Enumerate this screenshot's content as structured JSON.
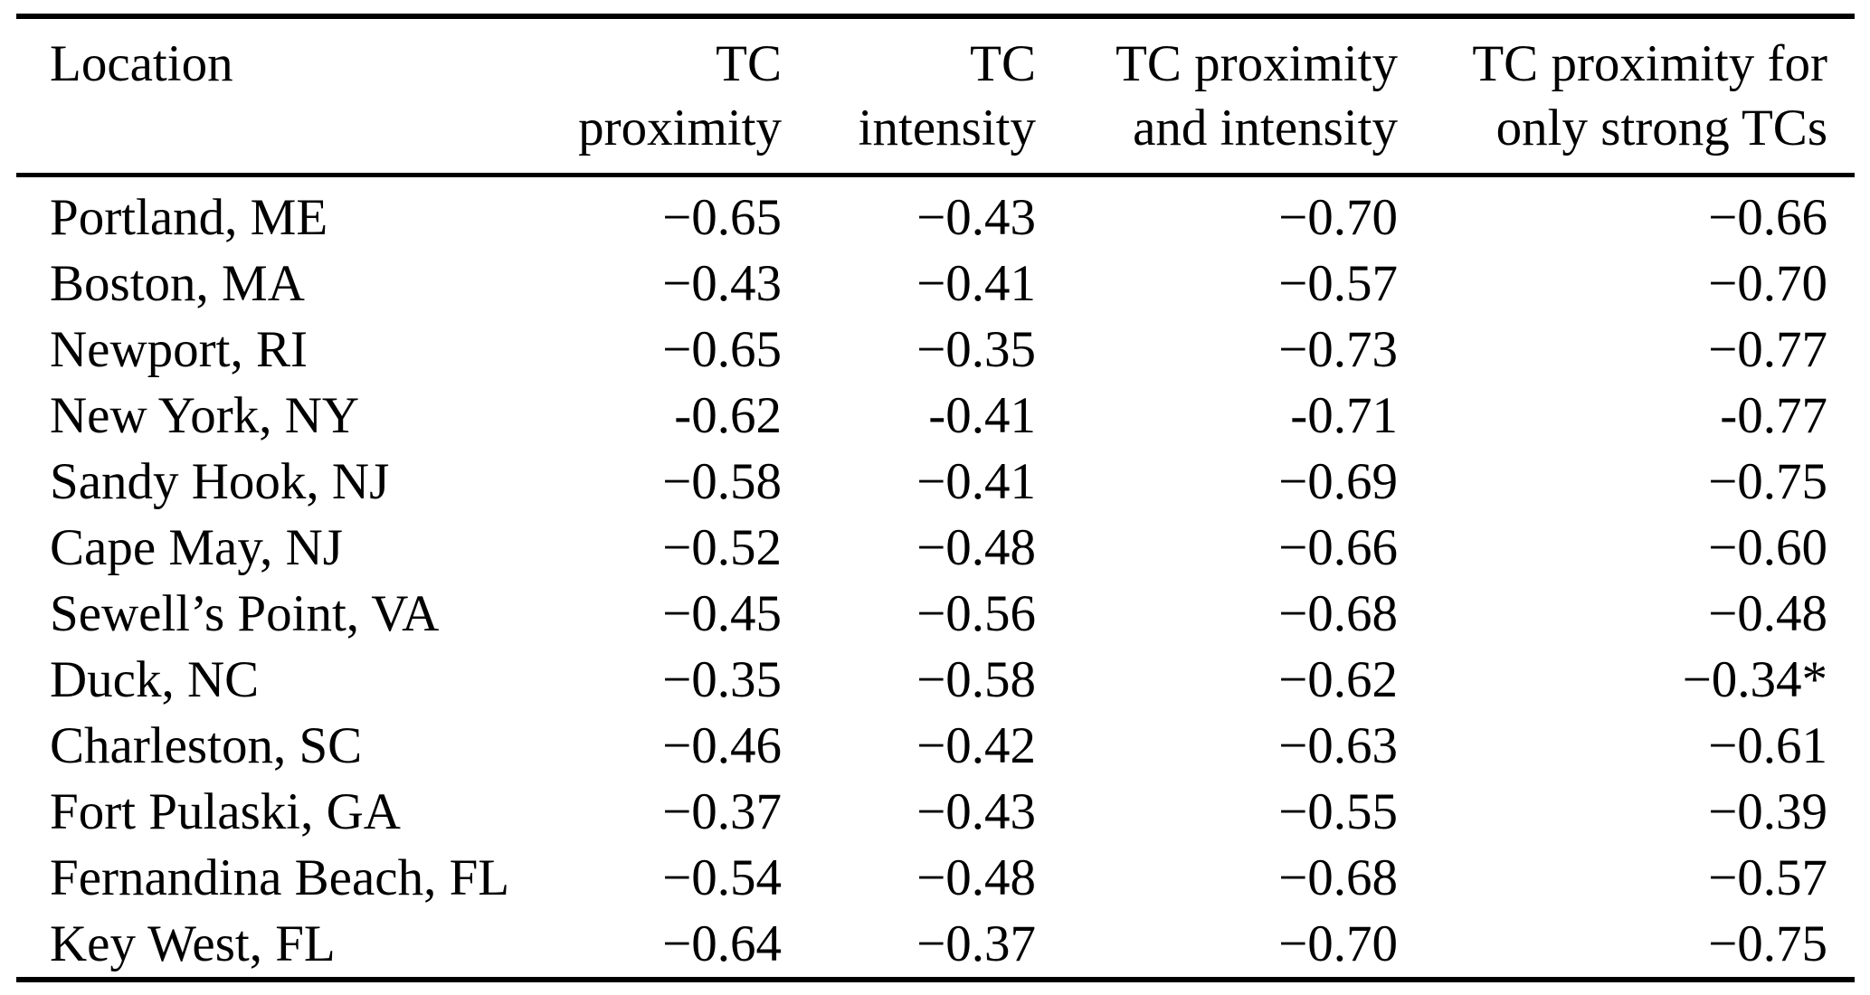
{
  "table": {
    "columns": [
      {
        "line1": "Location",
        "line2": ""
      },
      {
        "line1": "TC",
        "line2": "proximity"
      },
      {
        "line1": "TC",
        "line2": "intensity"
      },
      {
        "line1": "TC proximity",
        "line2": "and intensity"
      },
      {
        "line1": "TC proximity for",
        "line2": "only strong TCs"
      }
    ],
    "rows": [
      {
        "location": "Portland, ME",
        "tc_proximity": "−0.65",
        "tc_intensity": "−0.43",
        "tc_proximity_and_intensity": "−0.70",
        "tc_proximity_strong_only": "−0.66"
      },
      {
        "location": "Boston, MA",
        "tc_proximity": "−0.43",
        "tc_intensity": "−0.41",
        "tc_proximity_and_intensity": "−0.57",
        "tc_proximity_strong_only": "−0.70"
      },
      {
        "location": "Newport, RI",
        "tc_proximity": "−0.65",
        "tc_intensity": "−0.35",
        "tc_proximity_and_intensity": "−0.73",
        "tc_proximity_strong_only": "−0.77"
      },
      {
        "location": "New York, NY",
        "tc_proximity": "-0.62",
        "tc_intensity": "-0.41",
        "tc_proximity_and_intensity": "-0.71",
        "tc_proximity_strong_only": "-0.77"
      },
      {
        "location": "Sandy Hook, NJ",
        "tc_proximity": "−0.58",
        "tc_intensity": "−0.41",
        "tc_proximity_and_intensity": "−0.69",
        "tc_proximity_strong_only": "−0.75"
      },
      {
        "location": "Cape May, NJ",
        "tc_proximity": "−0.52",
        "tc_intensity": "−0.48",
        "tc_proximity_and_intensity": "−0.66",
        "tc_proximity_strong_only": "−0.60"
      },
      {
        "location": "Sewell’s Point, VA",
        "tc_proximity": "−0.45",
        "tc_intensity": "−0.56",
        "tc_proximity_and_intensity": "−0.68",
        "tc_proximity_strong_only": "−0.48"
      },
      {
        "location": "Duck, NC",
        "tc_proximity": "−0.35",
        "tc_intensity": "−0.58",
        "tc_proximity_and_intensity": "−0.62",
        "tc_proximity_strong_only": "−0.34*"
      },
      {
        "location": "Charleston, SC",
        "tc_proximity": "−0.46",
        "tc_intensity": "−0.42",
        "tc_proximity_and_intensity": "−0.63",
        "tc_proximity_strong_only": "−0.61"
      },
      {
        "location": "Fort Pulaski, GA",
        "tc_proximity": "−0.37",
        "tc_intensity": "−0.43",
        "tc_proximity_and_intensity": "−0.55",
        "tc_proximity_strong_only": "−0.39"
      },
      {
        "location": "Fernandina Beach, FL",
        "tc_proximity": "−0.54",
        "tc_intensity": "−0.48",
        "tc_proximity_and_intensity": "−0.68",
        "tc_proximity_strong_only": "−0.57"
      },
      {
        "location": "Key West, FL",
        "tc_proximity": "−0.64",
        "tc_intensity": "−0.37",
        "tc_proximity_and_intensity": "−0.70",
        "tc_proximity_strong_only": "−0.75"
      }
    ],
    "colors": {
      "text": "#000000",
      "background": "#ffffff",
      "rule": "#000000"
    }
  }
}
